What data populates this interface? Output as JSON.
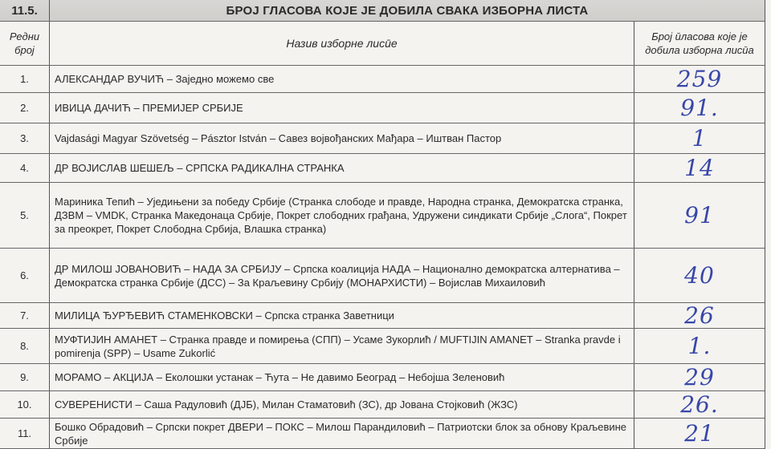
{
  "section": {
    "number": "11.5.",
    "title": "БРОЈ ГЛАСОВА КОЈЕ ЈЕ ДОБИЛА СВАКА ИЗБОРНА ЛИСТА"
  },
  "columns": {
    "no": "Редни број",
    "name": "Назив изборне лисӣе",
    "votes": "Број ӣласова које је добила изборна лисӣа"
  },
  "rows": [
    {
      "no": "1.",
      "name": "АЛЕКСАНДАР ВУЧИЋ – Заједно можемо све",
      "votes": "259"
    },
    {
      "no": "2.",
      "name": "ИВИЦА ДАЧИЋ – ПРЕМИЈЕР СРБИЈЕ",
      "votes": "91."
    },
    {
      "no": "3.",
      "name": "Vajdasági Magyar Szövetség – Pásztor István – Савез војвођанских Мађара – Иштван Пастор",
      "votes": "1"
    },
    {
      "no": "4.",
      "name": "ДР ВОЈИСЛАВ ШЕШЕЉ – СРПСКА РАДИКАЛНА СТРАНКА",
      "votes": "14"
    },
    {
      "no": "5.",
      "name": "Мариника Тепић – Уједињени за победу Србије (Странка слободе и правде, Народна странка, Демократска странка, ДЗВМ – VMDK, Странка Македонаца Србије, Покрет слободних грађана, Удружени синдикати Србије „Слога“, Покрет за преокрет, Покрет Слободна Србија, Влашка странка)",
      "votes": "91"
    },
    {
      "no": "6.",
      "name": "ДР МИЛОШ ЈОВАНОВИЋ – НАДА ЗА СРБИЈУ – Српска коалиција НАДА – Национално демократска алтернатива – Демократска странка Србије (ДСС) – За Краљевину Србију (МОНАРХИСТИ) – Војислав Михаиловић",
      "votes": "40"
    },
    {
      "no": "7.",
      "name": "МИЛИЦА ЂУРЂЕВИЋ СТАМЕНКОВСКИ – Српска странка Заветници",
      "votes": "26"
    },
    {
      "no": "8.",
      "name": "МУФТИЈИН АМАНЕТ – Странка правде и помирења (СПП) – Усаме Зукорлић / MUFTIJIN AMANET – Stranka pravde i pomirenja (SPP) – Usame Zukorlić",
      "votes": "1."
    },
    {
      "no": "9.",
      "name": "МОРАМО – АКЦИЈА – Еколошки устанак – Ћута – Не давимо Београд – Небојша Зеленовић",
      "votes": "29"
    },
    {
      "no": "10.",
      "name": "СУВЕРЕНИСТИ – Саша Радуловић (ДЈБ), Милан Стаматовић (ЗС), др Јована Стојковић (ЖЗС)",
      "votes": "26."
    },
    {
      "no": "11.",
      "name": "Бошко Обрадовић – Српски покрет ДВЕРИ – ПОКС – Милош Парандиловић – Патриотски блок за обнову Краљевине Србије",
      "votes": "21"
    }
  ],
  "colors": {
    "handwriting": "#3847a8",
    "header_band": "#d3d2cf"
  }
}
